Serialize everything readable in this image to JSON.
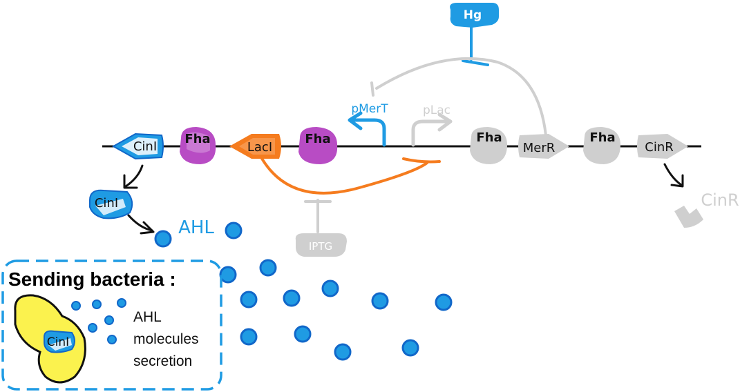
{
  "colors": {
    "blue": "#1f9be3",
    "dark_blue": "#1167c9",
    "purple": "#b84cc4",
    "orange": "#f57c1f",
    "gray": "#cfcfcf",
    "dark_gray": "#9a9a9a",
    "yellow": "#fbf24e",
    "black": "#111111"
  },
  "hg": {
    "label": "Hg"
  },
  "promoters": {
    "pmert": "pMerT",
    "plac": "pLac"
  },
  "genes": {
    "cinl_gene": "CinI",
    "fha_1": "Fha",
    "lacl_gene": "LacI",
    "fha_2": "Fha",
    "fha_3": "Fha",
    "merr_gene": "MerR",
    "fha_4": "Fha",
    "cinr_gene": "CinR"
  },
  "products": {
    "cinl_protein": "CinI",
    "ahl": "AHL",
    "cinr_protein": "CinR"
  },
  "inducer": {
    "iptg": "IPTG"
  },
  "legend": {
    "title": "Sending bacteria :",
    "cell_label": "CinI",
    "text_line1": "AHL",
    "text_line2": "molecules",
    "text_line3": "secretion"
  }
}
